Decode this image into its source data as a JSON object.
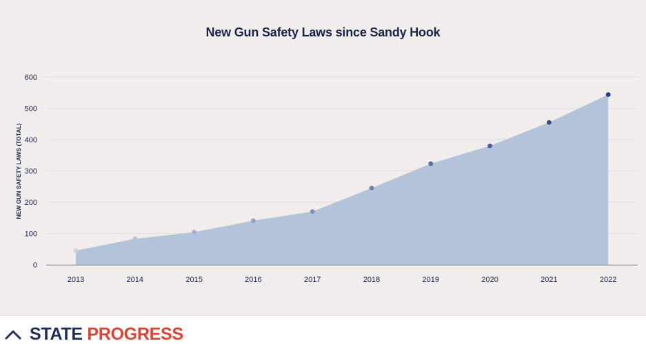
{
  "chart_data": {
    "type": "area",
    "title": "New Gun Safety Laws since Sandy Hook",
    "xlabel": "",
    "ylabel": "NEW GUN SAFETY LAWS (TOTAL)",
    "categories": [
      "2013",
      "2014",
      "2015",
      "2016",
      "2017",
      "2018",
      "2019",
      "2020",
      "2021",
      "2022"
    ],
    "series": [
      {
        "values": [
          45,
          83,
          104,
          141,
          170,
          245,
          323,
          380,
          455,
          544
        ]
      }
    ],
    "ylim": [
      0,
      600
    ],
    "yticks": [
      "0",
      "100",
      "200",
      "300",
      "400",
      "500",
      "600"
    ],
    "grid": true,
    "legend": "none",
    "colors": {
      "area_fill": "#b3c4da",
      "point_start": "#c9d3e2",
      "point_end": "#1e3d88",
      "gridline": "#e4dfdf",
      "axis": "#8a8a8a",
      "panel_bg": "#f1eded",
      "text": "#1a2448"
    }
  },
  "footer": {
    "brand_part1": "STATE",
    "brand_part2": "PROGRESS",
    "toggle_icon": "chevron-up-icon",
    "brand_colors": {
      "state": "#1d2d5c",
      "progress": "#e5412f"
    }
  }
}
